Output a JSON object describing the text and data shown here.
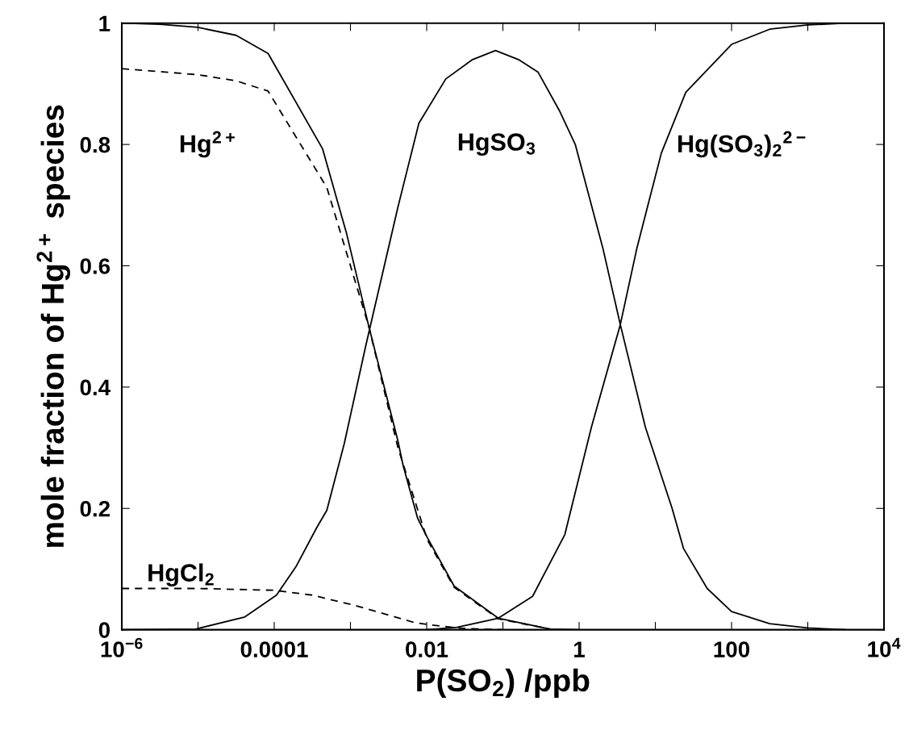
{
  "chart_data": {
    "type": "line",
    "xlabel": "P(SO$_{2}$) /ppb",
    "ylabel": "mole fraction of Hg$^{2+}$ species",
    "log": "x",
    "grid": false,
    "legend": false,
    "marker": "none",
    "xlim": [
      1e-06,
      10000
    ],
    "ylim": [
      0,
      1
    ],
    "xticks": [
      {
        "value": 1e-06,
        "label": "10$^{−6}$"
      },
      {
        "value": 1e-05,
        "label": null
      },
      {
        "value": 0.0001,
        "label": "0.0001"
      },
      {
        "value": 0.001,
        "label": null
      },
      {
        "value": 0.01,
        "label": "0.01"
      },
      {
        "value": 0.1,
        "label": null
      },
      {
        "value": 1,
        "label": "1"
      },
      {
        "value": 10,
        "label": null
      },
      {
        "value": 100,
        "label": "100"
      },
      {
        "value": 1000,
        "label": null
      },
      {
        "value": 10000,
        "label": "10$^{4}$"
      }
    ],
    "yticks": [
      {
        "value": 0,
        "label": "0"
      },
      0.2,
      0.4,
      0.6,
      0.8,
      {
        "value": 1,
        "label": "1"
      }
    ],
    "series": [
      {
        "name": "Hg$^{2+}$",
        "color": "#000000",
        "line_style": "solid",
        "x": [
          1e-06,
          3.16e-06,
          1e-05,
          3.16e-05,
          8.3e-05,
          0.00043,
          0.00089,
          0.00174,
          0.0042,
          0.0049,
          0.0076,
          0.0102,
          0.0229,
          0.087,
          0.417,
          1
        ],
        "values": [
          1.0,
          0.998,
          0.993,
          0.98,
          0.95,
          0.793,
          0.653,
          0.5,
          0.311,
          0.271,
          0.184,
          0.152,
          0.072,
          0.019,
          0.001,
          0
        ]
      },
      {
        "color": "#000000",
        "line_style": "dashed",
        "x": [
          1e-06,
          1e-05,
          3.16e-05,
          8.3e-05,
          0.00049,
          0.001,
          0.00174,
          0.0042,
          0.0102,
          0.0229,
          0.087,
          0.417
        ],
        "values": [
          0.925,
          0.915,
          0.905,
          0.888,
          0.729,
          0.6,
          0.5,
          0.3,
          0.148,
          0.07,
          0.018,
          0.001
        ]
      },
      {
        "name": "HgCl$_{2}$",
        "color": "#000000",
        "line_style": "dashed",
        "x": [
          1e-06,
          1e-05,
          0.0001,
          0.000316,
          0.00123,
          0.00316,
          0.0068,
          0.011,
          0.0316,
          0.1
        ],
        "values": [
          0.068,
          0.068,
          0.065,
          0.057,
          0.039,
          0.024,
          0.012,
          0.008,
          0.002,
          0
        ]
      },
      {
        "name": "HgSO$_{3}$",
        "color": "#000000",
        "line_style": "solid",
        "x": [
          1e-06,
          9.3e-06,
          4.1e-05,
          0.000107,
          0.000195,
          0.00036,
          0.00049,
          0.00083,
          0.00158,
          0.0042,
          0.0079,
          0.0178,
          0.04,
          0.08,
          0.16,
          0.29,
          0.55,
          0.89,
          2.04,
          3.47,
          7.4,
          16.6,
          23.4,
          47.9,
          100,
          316,
          1000,
          3162
        ],
        "values": [
          0,
          0.001,
          0.021,
          0.057,
          0.105,
          0.168,
          0.197,
          0.307,
          0.467,
          0.697,
          0.835,
          0.908,
          0.94,
          0.955,
          0.94,
          0.919,
          0.856,
          0.8,
          0.63,
          0.503,
          0.334,
          0.2,
          0.134,
          0.068,
          0.03,
          0.01,
          0.003,
          0
        ]
      },
      {
        "name": "Hg(SO$_{3}$)$_{2}$$^{2−}$",
        "color": "#000000",
        "line_style": "solid",
        "x": [
          0.01,
          0.025,
          0.087,
          0.245,
          0.65,
          1.45,
          3.47,
          5.75,
          12,
          25.1,
          100,
          316,
          1000,
          3162,
          10000
        ],
        "values": [
          0,
          0.004,
          0.019,
          0.055,
          0.157,
          0.334,
          0.503,
          0.63,
          0.786,
          0.886,
          0.965,
          0.99,
          0.997,
          1.0,
          1.0
        ]
      }
    ]
  }
}
